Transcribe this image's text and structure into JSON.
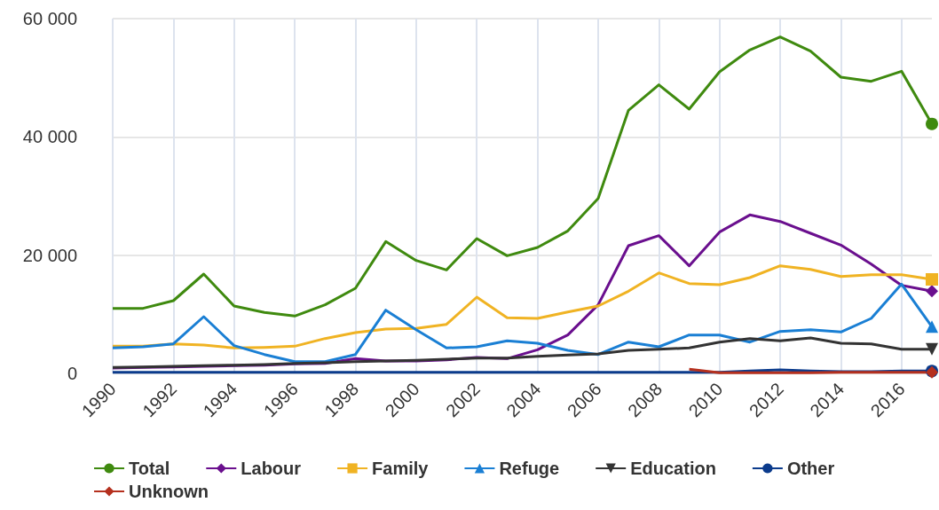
{
  "chart_data": {
    "type": "line",
    "x": [
      1990,
      1991,
      1992,
      1993,
      1994,
      1995,
      1996,
      1997,
      1998,
      1999,
      2000,
      2001,
      2002,
      2003,
      2004,
      2005,
      2006,
      2007,
      2008,
      2009,
      2010,
      2011,
      2012,
      2013,
      2014,
      2015,
      2016,
      2017
    ],
    "series": [
      {
        "name": "Total",
        "color": "#3f8a0f",
        "values": [
          11000,
          11000,
          12300,
          16800,
          11400,
          10300,
          9700,
          11600,
          14400,
          22300,
          19100,
          17500,
          22800,
          19900,
          21300,
          24100,
          29600,
          44500,
          48800,
          44700,
          51000,
          54700,
          56900,
          54500,
          50100,
          49400,
          51100,
          42200
        ]
      },
      {
        "name": "Labour",
        "color": "#6a0f8e",
        "values": [
          900,
          1000,
          1100,
          1200,
          1300,
          1400,
          1600,
          1700,
          2500,
          2100,
          2100,
          2300,
          2700,
          2500,
          4000,
          6500,
          11600,
          21600,
          23300,
          18200,
          23900,
          26800,
          25700,
          23700,
          21700,
          18500,
          14900,
          13900
        ]
      },
      {
        "name": "Family",
        "color": "#f0b323",
        "values": [
          4600,
          4600,
          5000,
          4800,
          4300,
          4400,
          4600,
          5900,
          6900,
          7500,
          7600,
          8300,
          12900,
          9400,
          9300,
          10400,
          11400,
          13900,
          17000,
          15200,
          15000,
          16200,
          18200,
          17600,
          16400,
          16700,
          16700,
          15900
        ]
      },
      {
        "name": "Refuge",
        "color": "#1a7fd4",
        "values": [
          4300,
          4500,
          5000,
          9600,
          4700,
          3200,
          2000,
          2000,
          3200,
          10700,
          7400,
          4300,
          4500,
          5500,
          5100,
          3900,
          3200,
          5300,
          4500,
          6500,
          6500,
          5300,
          7100,
          7400,
          7000,
          9300,
          15100,
          7900
        ]
      },
      {
        "name": "Education",
        "color": "#333333",
        "values": [
          1000,
          1100,
          1200,
          1300,
          1400,
          1500,
          1700,
          1800,
          2000,
          2100,
          2200,
          2400,
          2600,
          2600,
          2900,
          3100,
          3300,
          3900,
          4100,
          4300,
          5300,
          5900,
          5500,
          6000,
          5100,
          5000,
          4100,
          4100
        ]
      },
      {
        "name": "Other",
        "color": "#0b3b8c",
        "values": [
          200,
          200,
          200,
          200,
          200,
          200,
          200,
          200,
          200,
          200,
          200,
          200,
          200,
          200,
          200,
          200,
          200,
          200,
          200,
          200,
          200,
          400,
          600,
          400,
          300,
          300,
          400,
          400
        ]
      },
      {
        "name": "Unknown",
        "color": "#b5301e",
        "values": [
          null,
          null,
          null,
          null,
          null,
          null,
          null,
          null,
          null,
          null,
          null,
          null,
          null,
          null,
          null,
          null,
          null,
          null,
          null,
          700,
          100,
          100,
          100,
          100,
          200,
          200,
          200,
          200
        ]
      }
    ],
    "xlim": [
      1990,
      2017
    ],
    "xticks": [
      1990,
      1992,
      1994,
      1996,
      1998,
      2000,
      2002,
      2004,
      2006,
      2008,
      2010,
      2012,
      2014,
      2016
    ],
    "ylim": [
      0,
      60000
    ],
    "yticks": [
      {
        "value": 0,
        "label": "0"
      },
      {
        "value": 20000,
        "label": "20 000"
      },
      {
        "value": 40000,
        "label": "40 000"
      },
      {
        "value": 60000,
        "label": "60 000"
      }
    ],
    "grid": true,
    "legend": "bottom",
    "line_style": "solid"
  }
}
